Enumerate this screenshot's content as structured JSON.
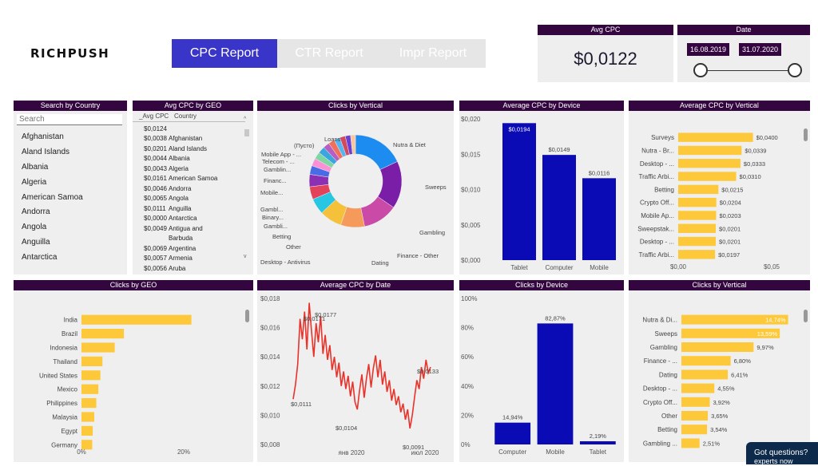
{
  "brand": {
    "logo": "RICHPUSH"
  },
  "tabs": [
    {
      "label": "CPC Report",
      "active": true
    },
    {
      "label": "CTR Report",
      "active": false
    },
    {
      "label": "Impr Report",
      "active": false
    }
  ],
  "kpi": {
    "title": "Avg CPC",
    "value": "$0,0122"
  },
  "date_filter": {
    "title": "Date",
    "start": "16.08.2019",
    "end": "31.07.2020"
  },
  "search_country": {
    "title": "Search by Country",
    "placeholder": "Search",
    "items": [
      "Afghanistan",
      "Aland Islands",
      "Albania",
      "Algeria",
      "American Samoa",
      "Andorra",
      "Angola",
      "Anguilla",
      "Antarctica"
    ]
  },
  "avg_cpc_geo": {
    "title": "Avg CPC by GEO",
    "col1": "_Avg CPC",
    "col2": "Country",
    "rows": [
      [
        "$0,0124",
        ""
      ],
      [
        "$0,0038",
        "Afghanistan"
      ],
      [
        "$0,0201",
        "Aland Islands"
      ],
      [
        "$0,0044",
        "Albania"
      ],
      [
        "$0,0043",
        "Algeria"
      ],
      [
        "$0,0161",
        "American Samoa"
      ],
      [
        "$0,0046",
        "Andorra"
      ],
      [
        "$0,0065",
        "Angola"
      ],
      [
        "$0,0111",
        "Anguilla"
      ],
      [
        "$0,0000",
        "Antarctica"
      ],
      [
        "$0,0049",
        "Antigua and"
      ],
      [
        "",
        "Barbuda"
      ],
      [
        "$0,0069",
        "Argentina"
      ],
      [
        "$0,0057",
        "Armenia"
      ],
      [
        "$0,0056",
        "Aruba"
      ]
    ]
  },
  "colors": {
    "accent": "#3a35c9",
    "header": "#34063f",
    "bar_blue": "#0b0bb5",
    "bar_yellow": "#fdc93b",
    "line_red": "#e8322a"
  },
  "chart_data": [
    {
      "id": "clicks_by_vertical_donut",
      "type": "pie",
      "title": "Clicks by Vertical",
      "labels": [
        "Nutra & Diet",
        "Sweeps",
        "Gambling",
        "Finance - Other",
        "Dating",
        "Desktop - Antivirus",
        "Other",
        "Betting",
        "Gambli...",
        "Binary...",
        "Gambl...",
        "Mobile...",
        "Financ...",
        "Gamblin...",
        "Telecom - ...",
        "Mobile App - ...",
        "(Пусто)",
        "Loans"
      ],
      "values": [
        14.74,
        13.59,
        9.97,
        6.8,
        6.41,
        4.55,
        3.65,
        3.54,
        2.51,
        2.2,
        2.0,
        2.0,
        1.8,
        1.8,
        1.7,
        1.6,
        1.5,
        1.4
      ],
      "colors": [
        "#1d8cf0",
        "#7a1ea8",
        "#c94aa7",
        "#f59a5b",
        "#f5c03a",
        "#27c6e3",
        "#e2425a",
        "#8b2fb3",
        "#4a6be6",
        "#fd8fd6",
        "#7fd6a4",
        "#3aa6dd",
        "#b85ec2",
        "#f2705a",
        "#56b4f0",
        "#d1495b",
        "#6a3fd4",
        "#f7c8a0"
      ],
      "outer_labels": [
        {
          "text": "Nutra & Diet",
          "side": "right"
        },
        {
          "text": "Sweeps",
          "side": "right"
        },
        {
          "text": "Gambling",
          "side": "right"
        },
        {
          "text": "Finance - Other",
          "side": "right"
        },
        {
          "text": "Dating",
          "side": "right"
        },
        {
          "text": "Desktop - Antivirus",
          "side": "left"
        },
        {
          "text": "Other",
          "side": "left"
        },
        {
          "text": "Betting",
          "side": "left"
        },
        {
          "text": "Gambli...",
          "side": "left"
        },
        {
          "text": "Binary...",
          "side": "left"
        },
        {
          "text": "Gambl...",
          "side": "left"
        },
        {
          "text": "Mobile...",
          "side": "left"
        },
        {
          "text": "Financ...",
          "side": "left"
        },
        {
          "text": "Gamblin...",
          "side": "left"
        },
        {
          "text": "Telecom - ...",
          "side": "left"
        },
        {
          "text": "Mobile App - ...",
          "side": "left"
        },
        {
          "text": "(Пусто)",
          "side": "left"
        },
        {
          "text": "Loans",
          "side": "left"
        }
      ]
    },
    {
      "id": "avg_cpc_by_device",
      "type": "bar",
      "title": "Average CPC by Device",
      "categories": [
        "Tablet",
        "Computer",
        "Mobile"
      ],
      "values": [
        0.0194,
        0.0149,
        0.0116
      ],
      "data_labels": [
        "$0,0194",
        "$0,0149",
        "$0,0116"
      ],
      "ylim": [
        0,
        0.02
      ],
      "ticks": [
        "$0,000",
        "$0,005",
        "$0,010",
        "$0,015",
        "$0,020"
      ]
    },
    {
      "id": "avg_cpc_by_vertical",
      "type": "bar",
      "orientation": "horizontal",
      "title": "Average CPC by Vertical",
      "categories": [
        "Surveys",
        "Nutra - Br...",
        "Desktop - ...",
        "Traffic Arbi...",
        "Betting",
        "Crypto Off...",
        "Mobile Ap...",
        "Sweepstak...",
        "Desktop - ...",
        "Traffic Arbi..."
      ],
      "values": [
        0.04,
        0.0339,
        0.0333,
        0.031,
        0.0215,
        0.0204,
        0.0203,
        0.0201,
        0.0201,
        0.0197
      ],
      "data_labels": [
        "$0,0400",
        "$0,0339",
        "$0,0333",
        "$0,0310",
        "$0,0215",
        "$0,0204",
        "$0,0203",
        "$0,0201",
        "$0,0201",
        "$0,0197"
      ],
      "xlim": [
        0,
        0.05
      ],
      "ticks": [
        "$0,00",
        "$0,05"
      ]
    },
    {
      "id": "clicks_by_geo",
      "type": "bar",
      "orientation": "horizontal",
      "title": "Clicks by GEO",
      "categories": [
        "India",
        "Brazil",
        "Indonesia",
        "Thailand",
        "United States",
        "Mexico",
        "Philippines",
        "Malaysia",
        "Egypt",
        "Germany"
      ],
      "values": [
        21.5,
        8.3,
        6.5,
        4.1,
        3.7,
        3.3,
        2.9,
        2.5,
        2.2,
        2.1
      ],
      "xlim": [
        0,
        25
      ],
      "ticks": [
        "0%",
        "20%"
      ]
    },
    {
      "id": "avg_cpc_by_date",
      "type": "line",
      "title": "Average CPC by Date",
      "x_range": [
        "2019-08-16",
        "2020-07-31"
      ],
      "ylim": [
        0.008,
        0.018
      ],
      "yticks": [
        "$0,008",
        "$0,010",
        "$0,012",
        "$0,014",
        "$0,016",
        "$0,018"
      ],
      "xticks": [
        "янв 2020",
        "июл 2020"
      ],
      "annotations": [
        "$0,0177",
        "$0,0171",
        "$0,0111",
        "$0,0104",
        "$0,0091",
        "$0,0133"
      ],
      "values": [
        0.0111,
        0.0121,
        0.0135,
        0.0166,
        0.0152,
        0.0171,
        0.0145,
        0.0177,
        0.0158,
        0.014,
        0.0163,
        0.015,
        0.0168,
        0.0142,
        0.0155,
        0.0138,
        0.0148,
        0.0131,
        0.014,
        0.0126,
        0.0136,
        0.012,
        0.013,
        0.0118,
        0.0127,
        0.0113,
        0.0123,
        0.0109,
        0.0104,
        0.0117,
        0.0128,
        0.0112,
        0.0125,
        0.0135,
        0.0119,
        0.0132,
        0.0141,
        0.0126,
        0.0138,
        0.0121,
        0.013,
        0.0116,
        0.0124,
        0.011,
        0.0118,
        0.0107,
        0.0113,
        0.0102,
        0.0108,
        0.0097,
        0.0104,
        0.0091,
        0.01,
        0.0112,
        0.0124,
        0.0118,
        0.0133,
        0.0125,
        0.0138,
        0.0129,
        0.0133
      ]
    },
    {
      "id": "clicks_by_device",
      "type": "bar",
      "title": "Clicks by Device",
      "categories": [
        "Computer",
        "Mobile",
        "Tablet"
      ],
      "values": [
        14.94,
        82.87,
        2.19
      ],
      "data_labels": [
        "14,94%",
        "82,87%",
        "2,19%"
      ],
      "ylim": [
        0,
        100
      ],
      "ticks": [
        "0%",
        "20%",
        "40%",
        "60%",
        "80%",
        "100%"
      ]
    },
    {
      "id": "clicks_by_vertical_bars",
      "type": "bar",
      "orientation": "horizontal",
      "title": "Clicks by Vertical",
      "categories": [
        "Nutra & Di...",
        "Sweeps",
        "Gambling",
        "Finance - ...",
        "Dating",
        "Desktop - ...",
        "Crypto Off...",
        "Other",
        "Betting",
        "Gambling ..."
      ],
      "values": [
        14.74,
        13.59,
        9.97,
        6.8,
        6.41,
        4.55,
        3.92,
        3.65,
        3.54,
        2.51
      ],
      "data_labels": [
        "14,74%",
        "13,59%",
        "9,97%",
        "6,80%",
        "6,41%",
        "4,55%",
        "3,92%",
        "3,65%",
        "3,54%",
        "2,51%"
      ],
      "xlim": [
        0,
        16
      ]
    }
  ],
  "chat": {
    "text": "Got questions? Ch",
    "text2": "experts now"
  }
}
